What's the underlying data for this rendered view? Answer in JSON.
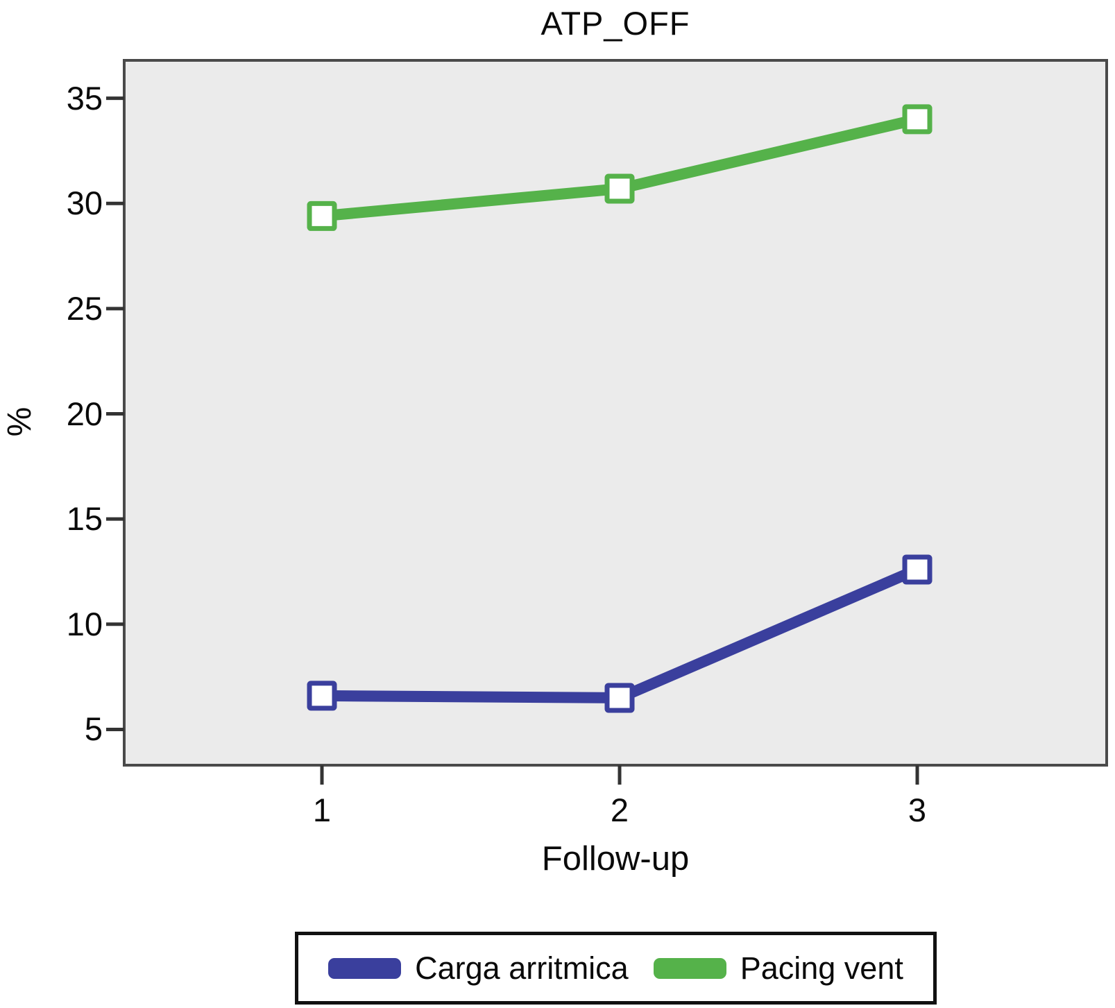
{
  "figure": {
    "title": "ATP_OFF",
    "x_axis_label": "Follow-up",
    "y_axis_label": "%"
  },
  "chart_data": {
    "type": "line",
    "title": "ATP_OFF",
    "xlabel": "Follow-up",
    "ylabel": "%",
    "x_tick_labels": [
      "1",
      "2",
      "3"
    ],
    "y_ticks": [
      5,
      10,
      15,
      20,
      25,
      30,
      35
    ],
    "ylim": [
      3.3,
      36.8
    ],
    "grid": false,
    "legend_position": "bottom",
    "marker": "white-filled-square",
    "series": [
      {
        "name": "Carga arritmica",
        "color": "#3a3f9d",
        "values": [
          6.6,
          6.5,
          12.6
        ]
      },
      {
        "name": "Pacing vent",
        "color": "#55b24a",
        "values": [
          29.4,
          30.7,
          34.0
        ]
      }
    ]
  },
  "legend": {
    "items": [
      {
        "label": "Carga arritmica",
        "color": "#3a3f9d"
      },
      {
        "label": "Pacing vent",
        "color": "#55b24a"
      }
    ]
  },
  "colors": {
    "plot_background": "#ebebeb",
    "plot_border": "#4a4a4a",
    "tick": "#333333",
    "text": "#0a0a0a"
  }
}
